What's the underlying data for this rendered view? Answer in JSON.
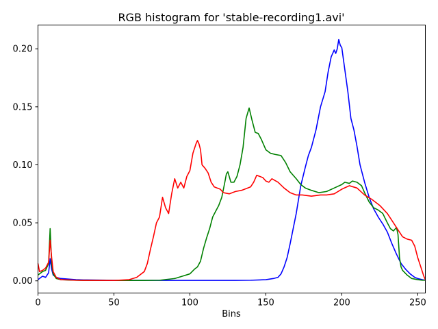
{
  "chart_data": {
    "type": "line",
    "title": "RGB histogram for 'stable-recording1.avi'",
    "xlabel": "Bins",
    "ylabel": "",
    "xlim": [
      0,
      255
    ],
    "ylim": [
      -0.0105,
      0.2205
    ],
    "x_ticks": [
      0,
      50,
      100,
      150,
      200,
      250
    ],
    "x_tick_labels": [
      "0",
      "50",
      "100",
      "150",
      "200",
      "250"
    ],
    "y_ticks": [
      0.0,
      0.05,
      0.1,
      0.15,
      0.2
    ],
    "y_tick_labels": [
      "0.00",
      "0.05",
      "0.10",
      "0.15",
      "0.20"
    ],
    "grid": false,
    "legend": "none",
    "series": [
      {
        "color": "#0000ff",
        "x": [
          0,
          3,
          5,
          7,
          8,
          9,
          10,
          12,
          15,
          20,
          25,
          30,
          50,
          80,
          100,
          120,
          130,
          140,
          150,
          155,
          158,
          160,
          162,
          164,
          166,
          168,
          170,
          173,
          176,
          178,
          180,
          183,
          186,
          189,
          191,
          193,
          195,
          196,
          197,
          198,
          199,
          200,
          202,
          204,
          206,
          208,
          210,
          212,
          215,
          218,
          221,
          224,
          227,
          230,
          233,
          236,
          239,
          242,
          245,
          248,
          250,
          253,
          255
        ],
        "y": [
          0.001,
          0.004,
          0.003,
          0.007,
          0.019,
          0.01,
          0.005,
          0.003,
          0.002,
          0.0015,
          0.001,
          0.0008,
          0.0005,
          0.0004,
          0.0004,
          0.0004,
          0.0004,
          0.0005,
          0.001,
          0.002,
          0.003,
          0.006,
          0.012,
          0.02,
          0.032,
          0.045,
          0.058,
          0.082,
          0.098,
          0.108,
          0.115,
          0.13,
          0.15,
          0.163,
          0.18,
          0.193,
          0.199,
          0.196,
          0.2,
          0.208,
          0.203,
          0.201,
          0.182,
          0.163,
          0.14,
          0.13,
          0.116,
          0.1,
          0.085,
          0.072,
          0.062,
          0.055,
          0.049,
          0.042,
          0.032,
          0.023,
          0.015,
          0.01,
          0.006,
          0.003,
          0.002,
          0.001,
          0.0005
        ]
      },
      {
        "color": "#008000",
        "x": [
          0,
          3,
          5,
          7,
          8,
          9,
          10,
          12,
          15,
          20,
          25,
          30,
          50,
          70,
          80,
          90,
          95,
          100,
          103,
          105,
          107,
          109,
          111,
          113,
          115,
          117,
          119,
          121,
          123,
          124,
          125,
          127,
          129,
          131,
          133,
          135,
          137,
          139,
          141,
          143,
          145,
          147,
          150,
          153,
          156,
          160,
          163,
          166,
          170,
          173,
          176,
          180,
          185,
          190,
          195,
          200,
          202,
          205,
          207,
          210,
          213,
          215,
          218,
          221,
          224,
          227,
          230,
          232,
          234,
          236,
          237,
          238,
          239,
          240,
          243,
          246,
          250,
          253,
          255
        ],
        "y": [
          0.005,
          0.008,
          0.009,
          0.015,
          0.045,
          0.015,
          0.006,
          0.002,
          0.001,
          0.0007,
          0.0005,
          0.0004,
          0.0003,
          0.0003,
          0.0005,
          0.002,
          0.004,
          0.006,
          0.01,
          0.012,
          0.017,
          0.028,
          0.037,
          0.045,
          0.055,
          0.06,
          0.065,
          0.072,
          0.085,
          0.092,
          0.094,
          0.085,
          0.085,
          0.09,
          0.1,
          0.115,
          0.14,
          0.149,
          0.138,
          0.128,
          0.127,
          0.122,
          0.113,
          0.11,
          0.109,
          0.108,
          0.102,
          0.094,
          0.088,
          0.083,
          0.08,
          0.078,
          0.076,
          0.077,
          0.08,
          0.083,
          0.085,
          0.084,
          0.086,
          0.085,
          0.082,
          0.076,
          0.068,
          0.063,
          0.061,
          0.058,
          0.05,
          0.045,
          0.043,
          0.046,
          0.04,
          0.02,
          0.012,
          0.009,
          0.005,
          0.002,
          0.001,
          0.0005,
          0.0005
        ]
      },
      {
        "color": "#ff0000",
        "x": [
          0,
          1,
          3,
          5,
          7,
          8,
          9,
          10,
          12,
          15,
          20,
          25,
          30,
          50,
          60,
          65,
          70,
          72,
          74,
          76,
          78,
          80,
          82,
          84,
          86,
          88,
          90,
          92,
          94,
          96,
          98,
          100,
          102,
          104,
          105,
          106,
          107,
          108,
          110,
          112,
          114,
          116,
          118,
          120,
          122,
          126,
          130,
          134,
          138,
          140,
          142,
          144,
          146,
          148,
          150,
          152,
          154,
          158,
          162,
          166,
          170,
          174,
          180,
          186,
          190,
          195,
          200,
          205,
          210,
          215,
          220,
          225,
          230,
          234,
          238,
          240,
          243,
          246,
          248,
          250,
          252,
          254,
          255
        ],
        "y": [
          0.015,
          0.008,
          0.009,
          0.011,
          0.016,
          0.035,
          0.02,
          0.008,
          0.003,
          0.001,
          0.0008,
          0.0005,
          0.0004,
          0.0003,
          0.001,
          0.003,
          0.008,
          0.015,
          0.027,
          0.038,
          0.05,
          0.055,
          0.072,
          0.063,
          0.058,
          0.075,
          0.088,
          0.08,
          0.085,
          0.08,
          0.09,
          0.095,
          0.11,
          0.118,
          0.121,
          0.118,
          0.113,
          0.1,
          0.097,
          0.093,
          0.085,
          0.081,
          0.08,
          0.079,
          0.076,
          0.075,
          0.077,
          0.078,
          0.08,
          0.081,
          0.085,
          0.091,
          0.09,
          0.089,
          0.086,
          0.085,
          0.088,
          0.085,
          0.08,
          0.076,
          0.074,
          0.074,
          0.073,
          0.074,
          0.074,
          0.075,
          0.079,
          0.082,
          0.08,
          0.074,
          0.07,
          0.065,
          0.058,
          0.05,
          0.042,
          0.038,
          0.036,
          0.035,
          0.03,
          0.02,
          0.012,
          0.004,
          0.001
        ]
      }
    ]
  }
}
